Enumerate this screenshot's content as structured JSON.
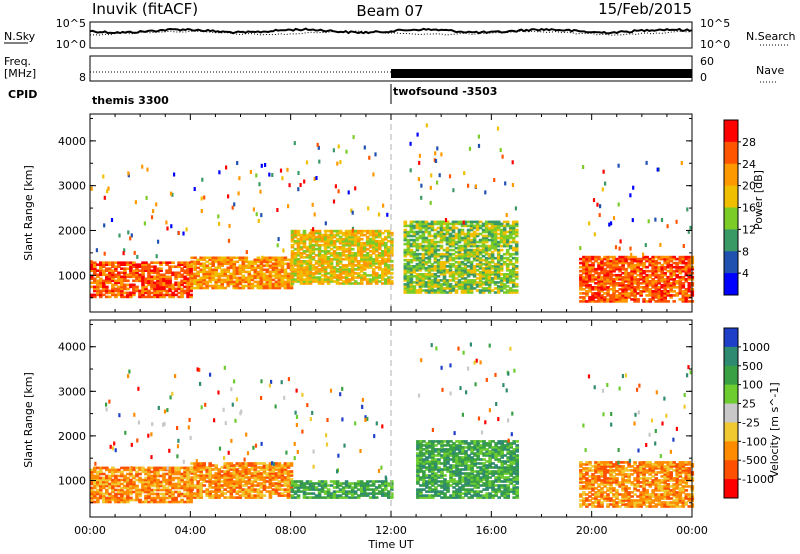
{
  "header": {
    "station": "Inuvik (fitACF)",
    "beam": "Beam 07",
    "date": "15/Feb/2015"
  },
  "top_panels": {
    "nsky_label": "N.Sky",
    "nsky_ticks": [
      "10^5",
      "10^0"
    ],
    "nsky_right_ticks": [
      "10^5",
      "10^0"
    ],
    "nsearch_label": "N.Search",
    "freq_label": "Freq.",
    "freq_unit": "[MHz]",
    "freq_ticks": [
      "8"
    ],
    "nave_ticks": [
      "60",
      "0"
    ],
    "nave_label": "Nave",
    "cpid_label": "CPID",
    "cpid_segments": [
      {
        "name": "themis 3300",
        "start": 0,
        "end": 12
      },
      {
        "name": "twofsound -3503",
        "start": 12,
        "end": 24
      }
    ]
  },
  "chart_data": [
    {
      "type": "heatmap",
      "quantity": "Power",
      "ylabel": "Slant Range [km]",
      "ylim": [
        180,
        4600
      ],
      "yticks": [
        1000,
        2000,
        3000,
        4000
      ],
      "xlim": [
        0,
        24
      ],
      "colorbar": {
        "label": "Power [dB]",
        "ticks": [
          "28",
          "24",
          "20",
          "16",
          "12",
          "8",
          "4"
        ],
        "colors": [
          "#ff0000",
          "#ff5500",
          "#ff9900",
          "#f0c000",
          "#7ccc28",
          "#3a9a66",
          "#2050b0",
          "#0000ff"
        ]
      },
      "echo_regions": [
        {
          "t_start": 0.0,
          "t_end": 4.0,
          "range_min": 500,
          "range_max": 1300,
          "level": "28"
        },
        {
          "t_start": 4.0,
          "t_end": 8.0,
          "range_min": 700,
          "range_max": 1400,
          "level": "24"
        },
        {
          "t_start": 8.0,
          "t_end": 12.0,
          "range_min": 800,
          "range_max": 2000,
          "level": "20"
        },
        {
          "t_start": 12.5,
          "t_end": 17.0,
          "range_min": 600,
          "range_max": 2200,
          "level": "16"
        },
        {
          "t_start": 19.5,
          "t_end": 24.0,
          "range_min": 400,
          "range_max": 1400,
          "level": "28"
        }
      ]
    },
    {
      "type": "heatmap",
      "quantity": "Velocity",
      "ylabel": "Slant Range [km]",
      "ylim": [
        180,
        4600
      ],
      "yticks": [
        1000,
        2000,
        3000,
        4000
      ],
      "xlim": [
        0,
        24
      ],
      "xticks": [
        "00:00",
        "04:00",
        "08:00",
        "12:00",
        "16:00",
        "20:00",
        "00:00"
      ],
      "xlabel": "Time UT",
      "colorbar": {
        "label": "Velocity [m s^-1]",
        "ticks": [
          "1000",
          "500",
          "100",
          "25",
          "-25",
          "-100",
          "-500",
          "-1000"
        ],
        "colors": [
          "#1e40c8",
          "#2e8a70",
          "#3aa044",
          "#6dcc30",
          "#c8c8c8",
          "#f0c830",
          "#ff8c00",
          "#ff5000",
          "#ff0000"
        ]
      },
      "echo_regions": [
        {
          "t_start": 0.0,
          "t_end": 4.0,
          "range_min": 500,
          "range_max": 1300,
          "level": "-100"
        },
        {
          "t_start": 4.0,
          "t_end": 8.0,
          "range_min": 600,
          "range_max": 1400,
          "level": "-100"
        },
        {
          "t_start": 8.0,
          "t_end": 12.0,
          "range_min": 600,
          "range_max": 1000,
          "level": "500"
        },
        {
          "t_start": 13.0,
          "t_end": 17.0,
          "range_min": 600,
          "range_max": 1900,
          "level": "500"
        },
        {
          "t_start": 19.5,
          "t_end": 24.0,
          "range_min": 400,
          "range_max": 1400,
          "level": "-100"
        }
      ]
    }
  ]
}
